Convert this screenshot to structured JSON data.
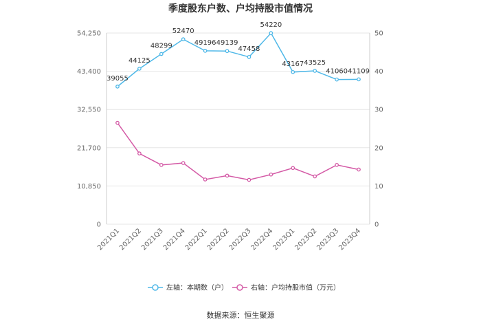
{
  "chart_data": {
    "type": "line",
    "title": "季度股东户数、户均持股市值情况",
    "categories": [
      "2021Q1",
      "2021Q2",
      "2021Q3",
      "2021Q4",
      "2022Q1",
      "2022Q2",
      "2022Q3",
      "2022Q4",
      "2023Q1",
      "2023Q2",
      "2023Q3",
      "2023Q4"
    ],
    "left_axis": {
      "ticks": [
        "0",
        "10,850",
        "21,700",
        "32,550",
        "43,400",
        "54,250"
      ],
      "min": 0,
      "max": 54250
    },
    "right_axis": {
      "ticks": [
        "0",
        "10",
        "20",
        "30",
        "40",
        "50"
      ],
      "min": 0,
      "max": 50
    },
    "series": [
      {
        "name": "左轴：本期数（户）",
        "axis": "left",
        "color": "#4fb8e8",
        "values": [
          39055,
          44125,
          48299,
          52470,
          49196,
          49139,
          47458,
          54220,
          43167,
          43525,
          41060,
          41109
        ],
        "labels": [
          "39055",
          "44125",
          "48299",
          "52470",
          "49196",
          "49139",
          "47458",
          "54220",
          "43167",
          "43525",
          "41060",
          "41109"
        ]
      },
      {
        "name": "右轴：户均持股市值（万元）",
        "axis": "right",
        "color": "#d45aa6",
        "values": [
          26.5,
          18.5,
          15.5,
          16.0,
          11.7,
          12.7,
          11.6,
          13.0,
          14.7,
          12.5,
          15.5,
          14.3
        ]
      }
    ],
    "grid": true,
    "legend_position": "bottom"
  },
  "source_text": "数据来源：恒生聚源"
}
